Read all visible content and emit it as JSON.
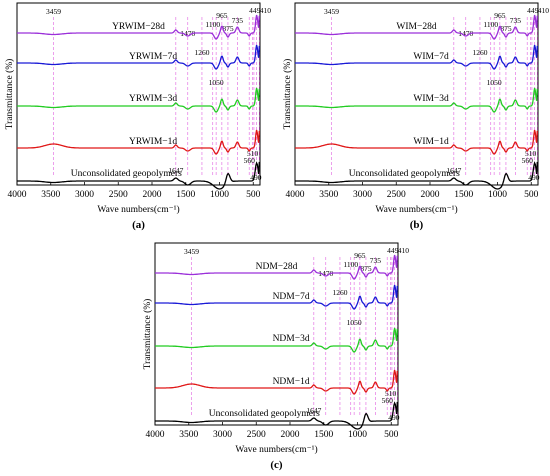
{
  "chart_data": [
    {
      "type": "line",
      "caption": "(a)",
      "xlabel": "Wave numbers(cm⁻¹)",
      "ylabel": "Transmittance (%)",
      "xlim": [
        4000,
        400
      ],
      "xticks": [
        4000,
        3500,
        3000,
        2500,
        2000,
        1500,
        1000,
        500
      ],
      "peak_lines": [
        3459,
        1647,
        1470,
        1260,
        1100,
        1050,
        965,
        875,
        735,
        560,
        510,
        490,
        449,
        410
      ],
      "series": [
        {
          "name": "YRWIM−28d",
          "color": "#9b30d9"
        },
        {
          "name": "YRWIM−7d",
          "color": "#1a1ad6"
        },
        {
          "name": "YRWIM−3d",
          "color": "#22cc22"
        },
        {
          "name": "YRWIM−1d",
          "color": "#e01818"
        },
        {
          "name": "Unconsolidated geopolymers",
          "color": "#000000"
        }
      ]
    },
    {
      "type": "line",
      "caption": "(b)",
      "xlabel": "Wave numbers(cm⁻¹)",
      "ylabel": "Transmittance (%)",
      "xlim": [
        4000,
        400
      ],
      "xticks": [
        4000,
        3500,
        3000,
        2500,
        2000,
        1500,
        1000,
        500
      ],
      "peak_lines": [
        3459,
        1647,
        1470,
        1260,
        1100,
        1050,
        965,
        875,
        735,
        560,
        510,
        490,
        449,
        410
      ],
      "series": [
        {
          "name": "WIM−28d",
          "color": "#9b30d9"
        },
        {
          "name": "WIM−7d",
          "color": "#1a1ad6"
        },
        {
          "name": "WIM−3d",
          "color": "#22cc22"
        },
        {
          "name": "WIM−1d",
          "color": "#e01818"
        },
        {
          "name": "Unconsolidated geopolymers",
          "color": "#000000"
        }
      ]
    },
    {
      "type": "line",
      "caption": "(c)",
      "xlabel": "Wave numbers(cm⁻¹)",
      "ylabel": "Transmittance (%)",
      "xlim": [
        4000,
        400
      ],
      "xticks": [
        4000,
        3500,
        3000,
        2500,
        2000,
        1500,
        1000,
        500
      ],
      "peak_lines": [
        3459,
        1647,
        1470,
        1260,
        1100,
        1050,
        965,
        875,
        735,
        560,
        510,
        490,
        449,
        410
      ],
      "series": [
        {
          "name": "NDM−28d",
          "color": "#9b30d9"
        },
        {
          "name": "NDM−7d",
          "color": "#1a1ad6"
        },
        {
          "name": "NDM−3d",
          "color": "#22cc22"
        },
        {
          "name": "NDM−1d",
          "color": "#e01818"
        },
        {
          "name": "Unconsolidated geopolymers",
          "color": "#000000"
        }
      ]
    }
  ]
}
